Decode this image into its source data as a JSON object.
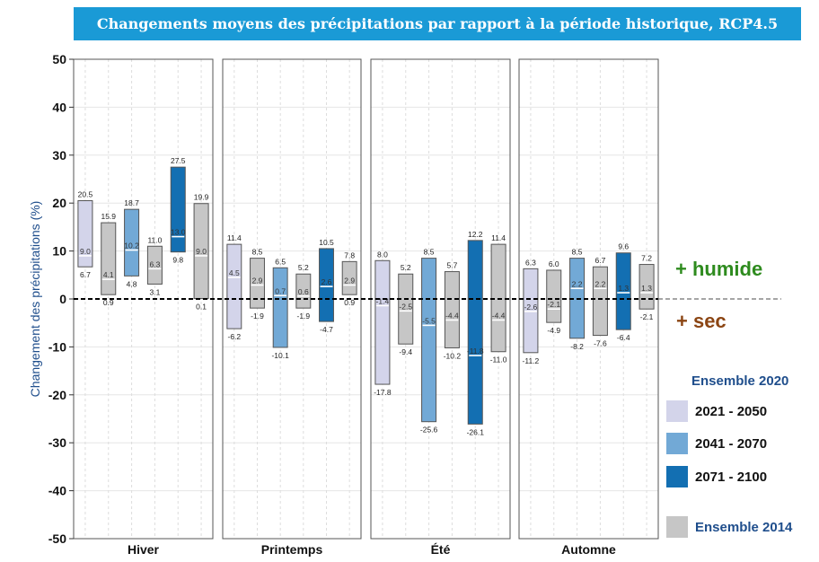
{
  "chart_data": {
    "type": "bar",
    "title": "Changements moyens des précipitations par rapport à la période historique, RCP4.5",
    "ylabel": "Changement des précipitations (%)",
    "xlabel": "",
    "ylim": [
      -50,
      50
    ],
    "yticks": [
      50,
      40,
      30,
      20,
      10,
      0,
      -10,
      -20,
      -30,
      -40,
      -50
    ],
    "grid": true,
    "categories": [
      "Hiver",
      "Printemps",
      "Été",
      "Automne"
    ],
    "series": [
      {
        "name": "2021 - 2050",
        "color": "#d3d4ea",
        "ensemble": "2020",
        "values": [
          {
            "low": 6.7,
            "mid": 9.0,
            "high": 20.5
          },
          {
            "low": -6.2,
            "mid": 4.5,
            "high": 11.4
          },
          {
            "low": -17.8,
            "mid": -1.4,
            "high": 8.0
          },
          {
            "low": -11.2,
            "mid": -2.6,
            "high": 6.3
          }
        ]
      },
      {
        "name": "",
        "color": "#c6c6c6",
        "ensemble": "2014",
        "values": [
          {
            "low": 0.9,
            "mid": 4.1,
            "high": 15.9
          },
          {
            "low": -1.9,
            "mid": 2.9,
            "high": 8.5
          },
          {
            "low": -9.4,
            "mid": -2.5,
            "high": 5.2
          },
          {
            "low": -4.9,
            "mid": -2.1,
            "high": 6.0
          }
        ]
      },
      {
        "name": "2041 - 2070",
        "color": "#72a9d6",
        "ensemble": "2020",
        "values": [
          {
            "low": 4.8,
            "mid": 10.2,
            "high": 18.7
          },
          {
            "low": -10.1,
            "mid": 0.7,
            "high": 6.5
          },
          {
            "low": -25.6,
            "mid": -5.5,
            "high": 8.5
          },
          {
            "low": -8.2,
            "mid": 2.2,
            "high": 8.5
          }
        ]
      },
      {
        "name": "",
        "color": "#c6c6c6",
        "ensemble": "2014",
        "values": [
          {
            "low": 3.1,
            "mid": 6.3,
            "high": 11.0
          },
          {
            "low": -1.9,
            "mid": 0.6,
            "high": 5.2
          },
          {
            "low": -10.2,
            "mid": -4.4,
            "high": 5.7
          },
          {
            "low": -7.6,
            "mid": 2.2,
            "high": 6.7
          }
        ]
      },
      {
        "name": "2071 - 2100",
        "color": "#136fb2",
        "ensemble": "2020",
        "values": [
          {
            "low": 9.8,
            "mid": 13.0,
            "high": 27.5
          },
          {
            "low": -4.7,
            "mid": 2.6,
            "high": 10.5
          },
          {
            "low": -26.1,
            "mid": -11.8,
            "high": 12.2
          },
          {
            "low": -6.4,
            "mid": 1.3,
            "high": 9.6
          }
        ]
      },
      {
        "name": "",
        "color": "#c6c6c6",
        "ensemble": "2014",
        "values": [
          {
            "low": 0.1,
            "mid": 9.0,
            "high": 19.9
          },
          {
            "low": 0.9,
            "mid": 2.9,
            "high": 7.8
          },
          {
            "low": -11.0,
            "mid": -4.4,
            "high": 11.4
          },
          {
            "low": -2.1,
            "mid": 1.3,
            "high": 7.2
          }
        ]
      }
    ],
    "legend": {
      "placement": "right",
      "title_2020": "Ensemble 2020",
      "title_2014": "Ensemble 2014",
      "items": [
        {
          "label": "2021 - 2050",
          "color": "#d3d4ea"
        },
        {
          "label": "2041 - 2070",
          "color": "#72a9d6"
        },
        {
          "label": "2071 - 2100",
          "color": "#136fb2"
        }
      ],
      "color_2014": "#c6c6c6"
    },
    "annotations": {
      "wet": {
        "text": "+ humide",
        "color": "#2e8b1e"
      },
      "dry": {
        "text": "+ sec",
        "color": "#8b4513"
      }
    }
  }
}
